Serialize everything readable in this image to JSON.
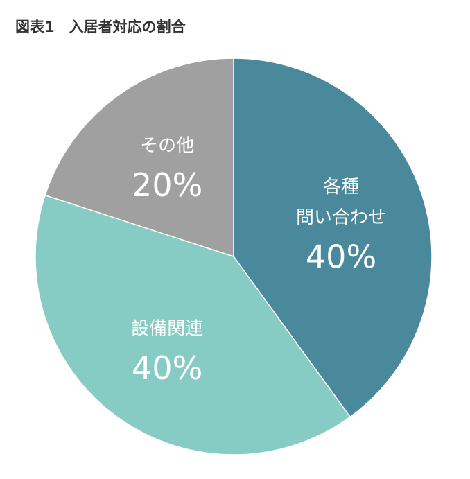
{
  "chart_data": {
    "type": "pie",
    "title": "図表1　入居者対応の割合",
    "categories": [
      "各種\n問い合わせ",
      "設備関連",
      "その他"
    ],
    "values": [
      40,
      40,
      20
    ],
    "value_labels": [
      "40%",
      "40%",
      "20%"
    ],
    "colors": [
      "#4a899b",
      "#86cbc4",
      "#a0a0a0"
    ]
  }
}
